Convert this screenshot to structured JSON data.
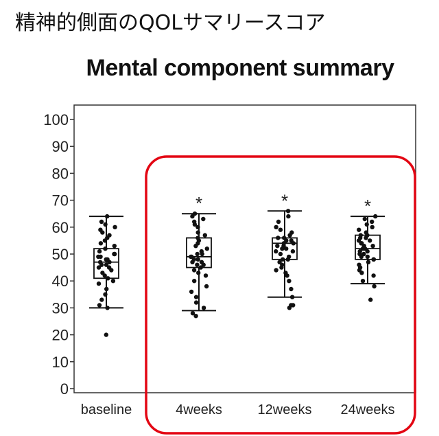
{
  "page_header": "精神的側面のQOLサマリースコア",
  "highlight_color": "#e30613",
  "chart_data": {
    "type": "box",
    "title": "Mental component summary",
    "xlabel": "",
    "ylabel": "",
    "ylim": [
      0,
      100
    ],
    "yticks": [
      0,
      10,
      20,
      30,
      40,
      50,
      60,
      70,
      80,
      90,
      100
    ],
    "categories": [
      "baseline",
      "4weeks",
      "12weeks",
      "24weeks"
    ],
    "boxes": [
      {
        "name": "baseline",
        "whisker_low": 30,
        "q1": 41,
        "median": 47,
        "q3": 52,
        "whisker_high": 64,
        "significance": ""
      },
      {
        "name": "4weeks",
        "whisker_low": 29,
        "q1": 45,
        "median": 49,
        "q3": 56,
        "whisker_high": 65,
        "significance": "*"
      },
      {
        "name": "12weeks",
        "whisker_low": 34,
        "q1": 48,
        "median": 54,
        "q3": 56,
        "whisker_high": 66,
        "significance": "*"
      },
      {
        "name": "24weeks",
        "whisker_low": 39,
        "q1": 48,
        "median": 52,
        "q3": 57,
        "whisker_high": 64,
        "significance": "*"
      }
    ],
    "points": [
      [
        20,
        30,
        31,
        33,
        35,
        37,
        39,
        40,
        41,
        42,
        43,
        44,
        45,
        45,
        46,
        46,
        47,
        47,
        48,
        48,
        49,
        49,
        50,
        50,
        51,
        52,
        53,
        54,
        55,
        56,
        57,
        58,
        59,
        60,
        61,
        62,
        64
      ],
      [
        27,
        28,
        30,
        32,
        34,
        36,
        38,
        40,
        42,
        43,
        44,
        45,
        46,
        46,
        47,
        47,
        48,
        48,
        49,
        49,
        50,
        50,
        51,
        52,
        53,
        54,
        55,
        56,
        57,
        58,
        60,
        61,
        62,
        63,
        64,
        65
      ],
      [
        30,
        31,
        31,
        34,
        37,
        40,
        42,
        43,
        44,
        45,
        46,
        47,
        48,
        48,
        49,
        50,
        51,
        51,
        52,
        52,
        53,
        53,
        54,
        54,
        55,
        55,
        56,
        56,
        57,
        58,
        59,
        60,
        62,
        64,
        66
      ],
      [
        33,
        38,
        40,
        42,
        43,
        44,
        45,
        46,
        47,
        48,
        48,
        49,
        49,
        50,
        50,
        51,
        51,
        52,
        52,
        53,
        53,
        54,
        54,
        55,
        55,
        56,
        56,
        57,
        57,
        58,
        59,
        60,
        61,
        62,
        63,
        64
      ]
    ]
  }
}
